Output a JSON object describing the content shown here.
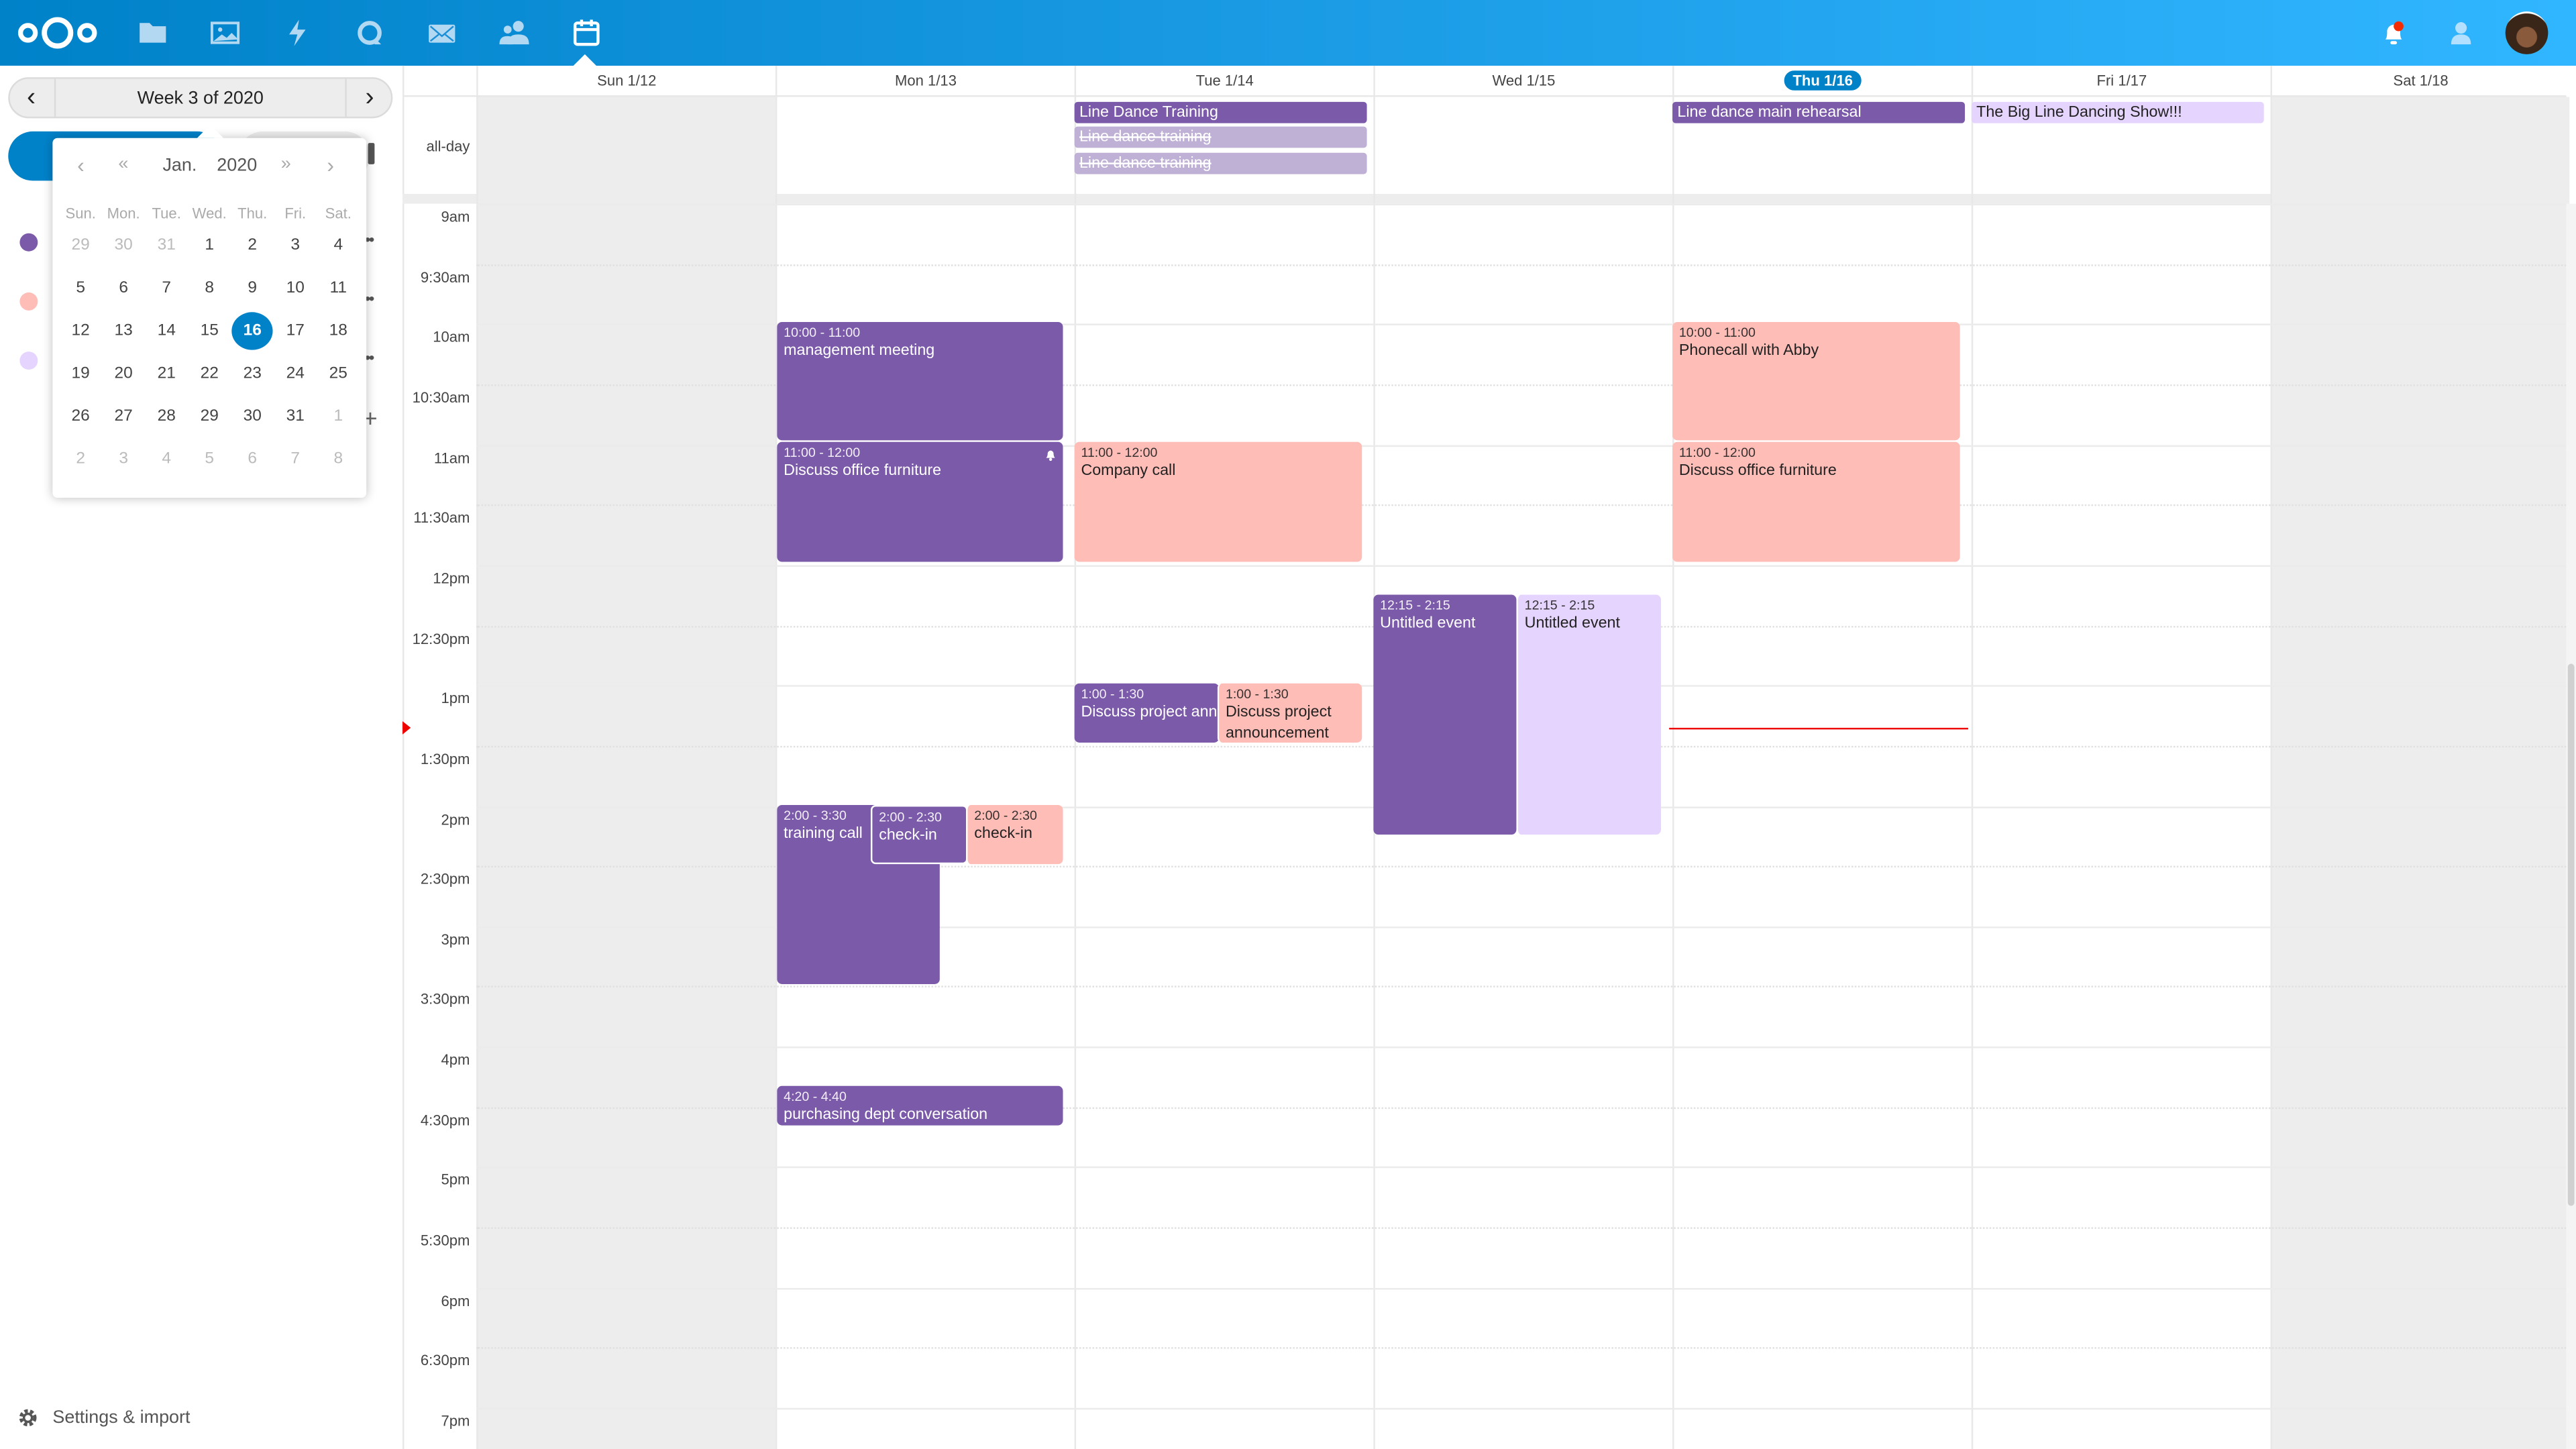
{
  "header": {
    "nav_icons": [
      "nextcloud-logo",
      "files-icon",
      "photos-icon",
      "activity-icon",
      "talk-icon",
      "mail-icon",
      "contacts-icon",
      "calendar-icon"
    ],
    "right_icons": [
      "notifications-icon",
      "contacts-menu-icon",
      "user-avatar"
    ],
    "colors": {
      "start": "#0082c9",
      "end": "#30b6ff"
    }
  },
  "sidebar": {
    "week_label": "Week 3 of 2020",
    "calendar_colors": [
      "#7b5aa9",
      "#ffbdb7",
      "#e5d4fd"
    ],
    "settings_label": "Settings & import"
  },
  "datepicker": {
    "month": "Jan.",
    "year": "2020",
    "weekdays": [
      "Sun.",
      "Mon.",
      "Tue.",
      "Wed.",
      "Thu.",
      "Fri.",
      "Sat."
    ],
    "weeks": [
      [
        "29",
        "30",
        "31",
        "1",
        "2",
        "3",
        "4"
      ],
      [
        "5",
        "6",
        "7",
        "8",
        "9",
        "10",
        "11"
      ],
      [
        "12",
        "13",
        "14",
        "15",
        "16",
        "17",
        "18"
      ],
      [
        "19",
        "20",
        "21",
        "22",
        "23",
        "24",
        "25"
      ],
      [
        "26",
        "27",
        "28",
        "29",
        "30",
        "31",
        "1"
      ],
      [
        "2",
        "3",
        "4",
        "5",
        "6",
        "7",
        "8"
      ]
    ],
    "selected": "16"
  },
  "calendar": {
    "days": [
      "Sun 1/12",
      "Mon 1/13",
      "Tue 1/14",
      "Wed 1/15",
      "Thu 1/16",
      "Fri 1/17",
      "Sat 1/18"
    ],
    "today_index": 4,
    "allday_label": "all-day",
    "times": [
      "9am",
      "9:30am",
      "10am",
      "10:30am",
      "11am",
      "11:30am",
      "12pm",
      "12:30pm",
      "1pm",
      "1:30pm",
      "2pm",
      "2:30pm",
      "3pm",
      "3:30pm",
      "4pm",
      "4:30pm",
      "5pm",
      "5:30pm",
      "6pm",
      "6:30pm",
      "7pm"
    ],
    "allday_events": [
      {
        "title": "Line Dance Training",
        "day": "Tue 1/14",
        "color": "#7b5aa9"
      },
      {
        "title": "Line dance training",
        "day": "Tue 1/14",
        "cancelled": true
      },
      {
        "title": "Line dance training",
        "day": "Tue 1/14",
        "cancelled": true
      },
      {
        "title": "Line dance main rehearsal",
        "day": "Thu 1/16",
        "color": "#7b5aa9"
      },
      {
        "title": "The Big Line Dancing Show!!!",
        "day": "Fri 1/17",
        "color": "#e5d4fd"
      }
    ],
    "events": [
      {
        "time": "10:00 - 11:00",
        "title": "management meeting",
        "day": "Mon 1/13"
      },
      {
        "time": "11:00 - 12:00",
        "title": "Discuss office furniture",
        "day": "Mon 1/13",
        "alarm": true
      },
      {
        "time": "11:00 - 12:00",
        "title": "Company call",
        "day": "Tue 1/14"
      },
      {
        "time": "1:00 - 1:30",
        "title": "Discuss project announcement",
        "day": "Tue 1/14"
      },
      {
        "time": "1:00 - 1:30",
        "title": "Discuss project announcement",
        "day": "Tue 1/14"
      },
      {
        "time": "12:15 - 2:15",
        "title": "Untitled event",
        "day": "Wed 1/15"
      },
      {
        "time": "12:15 - 2:15",
        "title": "Untitled event",
        "day": "Wed 1/15"
      },
      {
        "time": "2:00 - 3:30",
        "title": "training call",
        "day": "Mon 1/13"
      },
      {
        "time": "2:00 - 2:30",
        "title": "check-in",
        "day": "Mon 1/13"
      },
      {
        "time": "2:00 - 2:30",
        "title": "check-in",
        "day": "Mon 1/13"
      },
      {
        "time": "4:20 - 4:40",
        "title": "purchasing dept conversation",
        "day": "Mon 1/13"
      },
      {
        "time": "10:00 - 11:00",
        "title": "Phonecall with Abby",
        "day": "Thu 1/16"
      },
      {
        "time": "11:00 - 12:00",
        "title": "Discuss office furniture",
        "day": "Thu 1/16"
      }
    ],
    "now_indicator_color": "#e00"
  }
}
